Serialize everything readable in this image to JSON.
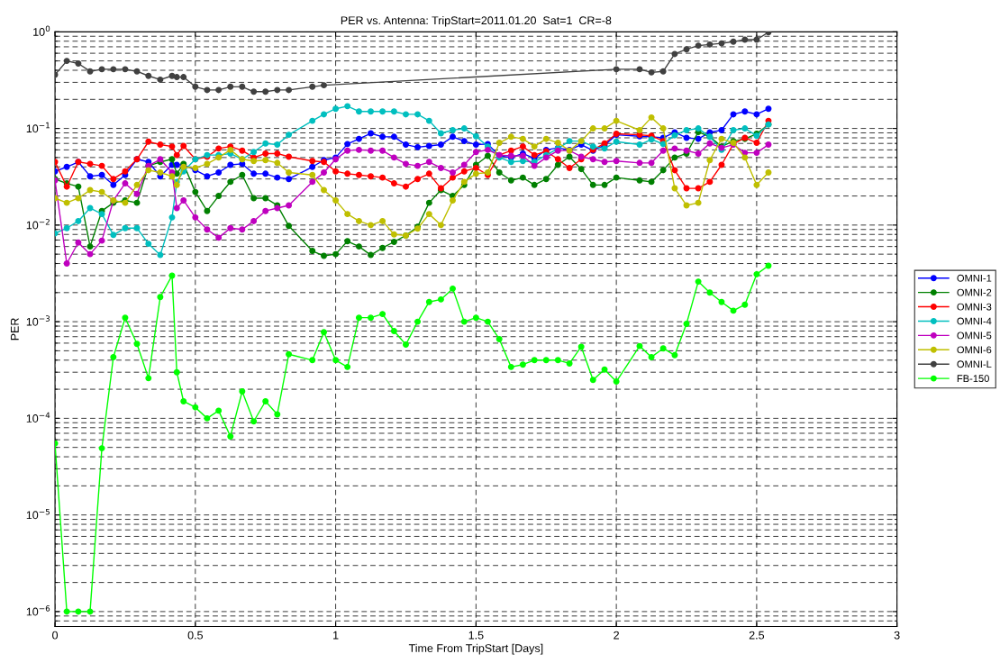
{
  "chart_data": {
    "type": "line",
    "title": "PER vs. Antenna: TripStart=2011.01.20  Sat=1  CR=-8",
    "xlabel": "Time From TripStart [Days]",
    "ylabel": "PER",
    "x": [
      0,
      0.042,
      0.083,
      0.125,
      0.167,
      0.208,
      0.25,
      0.292,
      0.333,
      0.375,
      0.417,
      0.434,
      0.458,
      0.5,
      0.542,
      0.583,
      0.625,
      0.667,
      0.708,
      0.75,
      0.792,
      0.833,
      0.917,
      0.958,
      1.0,
      1.042,
      1.083,
      1.125,
      1.167,
      1.208,
      1.25,
      1.292,
      1.333,
      1.375,
      1.417,
      1.458,
      1.5,
      1.542,
      1.583,
      1.625,
      1.667,
      1.708,
      1.75,
      1.792,
      1.833,
      1.875,
      1.917,
      1.958,
      2.0,
      2.083,
      2.125,
      2.167,
      2.208,
      2.25,
      2.292,
      2.333,
      2.375,
      2.417,
      2.458,
      2.5,
      2.542
    ],
    "series": [
      {
        "name": "OMNI-1",
        "color": "#0000ff",
        "values": [
          0.036,
          0.04,
          0.045,
          0.032,
          0.033,
          0.026,
          0.033,
          0.048,
          0.045,
          0.032,
          0.042,
          0.042,
          0.042,
          0.037,
          0.032,
          0.035,
          0.042,
          0.043,
          0.034,
          0.034,
          0.031,
          0.03,
          0.04,
          0.047,
          0.05,
          0.069,
          0.078,
          0.089,
          0.082,
          0.082,
          0.068,
          0.064,
          0.066,
          0.068,
          0.082,
          0.074,
          0.068,
          0.069,
          0.052,
          0.05,
          0.055,
          0.049,
          0.06,
          0.063,
          0.06,
          0.068,
          0.059,
          0.067,
          0.086,
          0.083,
          0.082,
          0.08,
          0.091,
          0.08,
          0.078,
          0.091,
          0.096,
          0.14,
          0.15,
          0.14,
          0.16
        ]
      },
      {
        "name": "OMNI-2",
        "color": "#008000",
        "values": [
          0.03,
          0.027,
          0.025,
          0.006,
          0.014,
          0.017,
          0.018,
          0.017,
          0.041,
          0.045,
          0.048,
          0.034,
          0.043,
          0.022,
          0.014,
          0.02,
          0.028,
          0.033,
          0.019,
          0.019,
          0.016,
          0.0098,
          0.0054,
          0.0048,
          0.005,
          0.0068,
          0.006,
          0.0049,
          0.0058,
          0.0067,
          0.0078,
          0.0096,
          0.017,
          0.023,
          0.02,
          0.026,
          0.042,
          0.052,
          0.035,
          0.029,
          0.031,
          0.026,
          0.03,
          0.042,
          0.051,
          0.038,
          0.026,
          0.026,
          0.031,
          0.029,
          0.028,
          0.037,
          0.05,
          0.055,
          0.092,
          0.082,
          0.065,
          0.074,
          0.078,
          0.088,
          0.11
        ]
      },
      {
        "name": "OMNI-3",
        "color": "#ff0000",
        "values": [
          0.045,
          0.025,
          0.045,
          0.043,
          0.041,
          0.03,
          0.036,
          0.048,
          0.073,
          0.068,
          0.065,
          0.053,
          0.066,
          0.048,
          0.051,
          0.062,
          0.065,
          0.059,
          0.05,
          0.055,
          0.055,
          0.051,
          0.046,
          0.045,
          0.036,
          0.034,
          0.033,
          0.032,
          0.031,
          0.027,
          0.025,
          0.03,
          0.034,
          0.024,
          0.031,
          0.036,
          0.039,
          0.033,
          0.053,
          0.059,
          0.065,
          0.053,
          0.058,
          0.048,
          0.039,
          0.048,
          0.06,
          0.07,
          0.088,
          0.086,
          0.084,
          0.074,
          0.037,
          0.024,
          0.024,
          0.028,
          0.042,
          0.069,
          0.08,
          0.071,
          0.12
        ]
      },
      {
        "name": "OMNI-4",
        "color": "#00bfbf",
        "values": [
          0.0082,
          0.0093,
          0.011,
          0.015,
          0.013,
          0.0079,
          0.0093,
          0.0093,
          0.0064,
          0.0049,
          0.012,
          0.028,
          0.036,
          0.048,
          0.053,
          0.053,
          0.055,
          0.048,
          0.057,
          0.07,
          0.068,
          0.086,
          0.12,
          0.14,
          0.16,
          0.17,
          0.15,
          0.15,
          0.15,
          0.15,
          0.14,
          0.14,
          0.12,
          0.089,
          0.096,
          0.1,
          0.083,
          0.065,
          0.05,
          0.045,
          0.046,
          0.045,
          0.053,
          0.062,
          0.074,
          0.074,
          0.065,
          0.062,
          0.073,
          0.068,
          0.077,
          0.069,
          0.085,
          0.096,
          0.1,
          0.082,
          0.06,
          0.096,
          0.1,
          0.084,
          0.11
        ]
      },
      {
        "name": "OMNI-5",
        "color": "#bf00bf",
        "values": [
          0.029,
          0.004,
          0.0066,
          0.005,
          0.0069,
          0.018,
          0.027,
          0.021,
          0.041,
          0.048,
          0.035,
          0.015,
          0.018,
          0.012,
          0.009,
          0.0074,
          0.0093,
          0.009,
          0.011,
          0.014,
          0.015,
          0.016,
          0.028,
          0.035,
          0.048,
          0.059,
          0.06,
          0.059,
          0.059,
          0.05,
          0.043,
          0.041,
          0.045,
          0.039,
          0.035,
          0.042,
          0.057,
          0.06,
          0.053,
          0.052,
          0.052,
          0.041,
          0.05,
          0.059,
          0.059,
          0.051,
          0.048,
          0.045,
          0.046,
          0.044,
          0.044,
          0.059,
          0.062,
          0.059,
          0.055,
          0.07,
          0.063,
          0.068,
          0.056,
          0.056,
          0.068
        ]
      },
      {
        "name": "OMNI-6",
        "color": "#bfbf00",
        "values": [
          0.019,
          0.017,
          0.019,
          0.023,
          0.022,
          0.018,
          0.017,
          0.026,
          0.037,
          0.035,
          0.032,
          0.026,
          0.04,
          0.039,
          0.043,
          0.05,
          0.06,
          0.048,
          0.046,
          0.047,
          0.044,
          0.035,
          0.033,
          0.023,
          0.018,
          0.013,
          0.011,
          0.01,
          0.011,
          0.008,
          0.0078,
          0.0092,
          0.013,
          0.01,
          0.018,
          0.028,
          0.034,
          0.035,
          0.071,
          0.082,
          0.078,
          0.065,
          0.078,
          0.071,
          0.059,
          0.074,
          0.1,
          0.1,
          0.12,
          0.096,
          0.13,
          0.1,
          0.024,
          0.016,
          0.017,
          0.047,
          0.078,
          0.071,
          0.05,
          0.026,
          0.035
        ]
      },
      {
        "name": "OMNI-L",
        "color": "#404040",
        "x": [
          0,
          0.042,
          0.083,
          0.125,
          0.167,
          0.208,
          0.25,
          0.292,
          0.333,
          0.375,
          0.417,
          0.434,
          0.458,
          0.5,
          0.542,
          0.583,
          0.625,
          0.667,
          0.708,
          0.75,
          0.792,
          0.833,
          0.917,
          0.958,
          2.0,
          2.083,
          2.125,
          2.167,
          2.208,
          2.25,
          2.292,
          2.333,
          2.375,
          2.417,
          2.458,
          2.5,
          2.542
        ],
        "values": [
          0.36,
          0.5,
          0.47,
          0.39,
          0.41,
          0.41,
          0.41,
          0.39,
          0.35,
          0.32,
          0.35,
          0.34,
          0.34,
          0.27,
          0.25,
          0.25,
          0.27,
          0.27,
          0.24,
          0.24,
          0.25,
          0.25,
          0.27,
          0.28,
          0.41,
          0.41,
          0.38,
          0.39,
          0.59,
          0.66,
          0.72,
          0.74,
          0.76,
          0.79,
          0.83,
          0.83,
          0.99
        ]
      },
      {
        "name": "FB-150",
        "color": "#00ff00",
        "values": [
          5.5e-05,
          1e-06,
          1e-06,
          1e-06,
          4.9e-05,
          0.00043,
          0.0011,
          0.00059,
          0.00026,
          0.0018,
          0.003,
          0.0003,
          0.00015,
          0.00013,
          0.0001,
          0.00012,
          6.5e-05,
          0.00019,
          9.3e-05,
          0.00015,
          0.00011,
          0.00046,
          0.0004,
          0.00078,
          0.0004,
          0.00034,
          0.0011,
          0.0011,
          0.0012,
          0.0008,
          0.00058,
          0.001,
          0.0016,
          0.0017,
          0.0022,
          0.001,
          0.0011,
          0.001,
          0.00066,
          0.00034,
          0.00036,
          0.0004,
          0.0004,
          0.0004,
          0.00037,
          0.00055,
          0.00025,
          0.00032,
          0.00024,
          0.00056,
          0.00043,
          0.00053,
          0.00045,
          0.00095,
          0.0026,
          0.002,
          0.0016,
          0.0013,
          0.0015,
          0.0031,
          0.0038
        ]
      }
    ],
    "xlim": [
      0,
      3
    ],
    "xticks": [
      0,
      {
        "value": 0.5,
        "label": "0.5"
      },
      1,
      {
        "value": 1.5,
        "label": "1.5"
      },
      2,
      {
        "value": 2.5,
        "label": "2.5"
      },
      3
    ],
    "log": "y",
    "ylim": [
      7e-07,
      1
    ],
    "yticks": [
      {
        "value": 1e-06,
        "label": "10$^{−6}$"
      },
      {
        "value": 1e-05,
        "label": "10$^{−5}$"
      },
      {
        "value": 0.0001,
        "label": "10$^{−4}$"
      },
      {
        "value": 0.001,
        "label": "10$^{−3}$"
      },
      {
        "value": 0.01,
        "label": "10$^{−2}$"
      },
      {
        "value": 0.1,
        "label": "10$^{−1}$"
      },
      {
        "value": 1,
        "label": "10$^{0}$"
      }
    ],
    "grid": true,
    "legend": "right",
    "marker": "circle",
    "line_style": "solid"
  }
}
